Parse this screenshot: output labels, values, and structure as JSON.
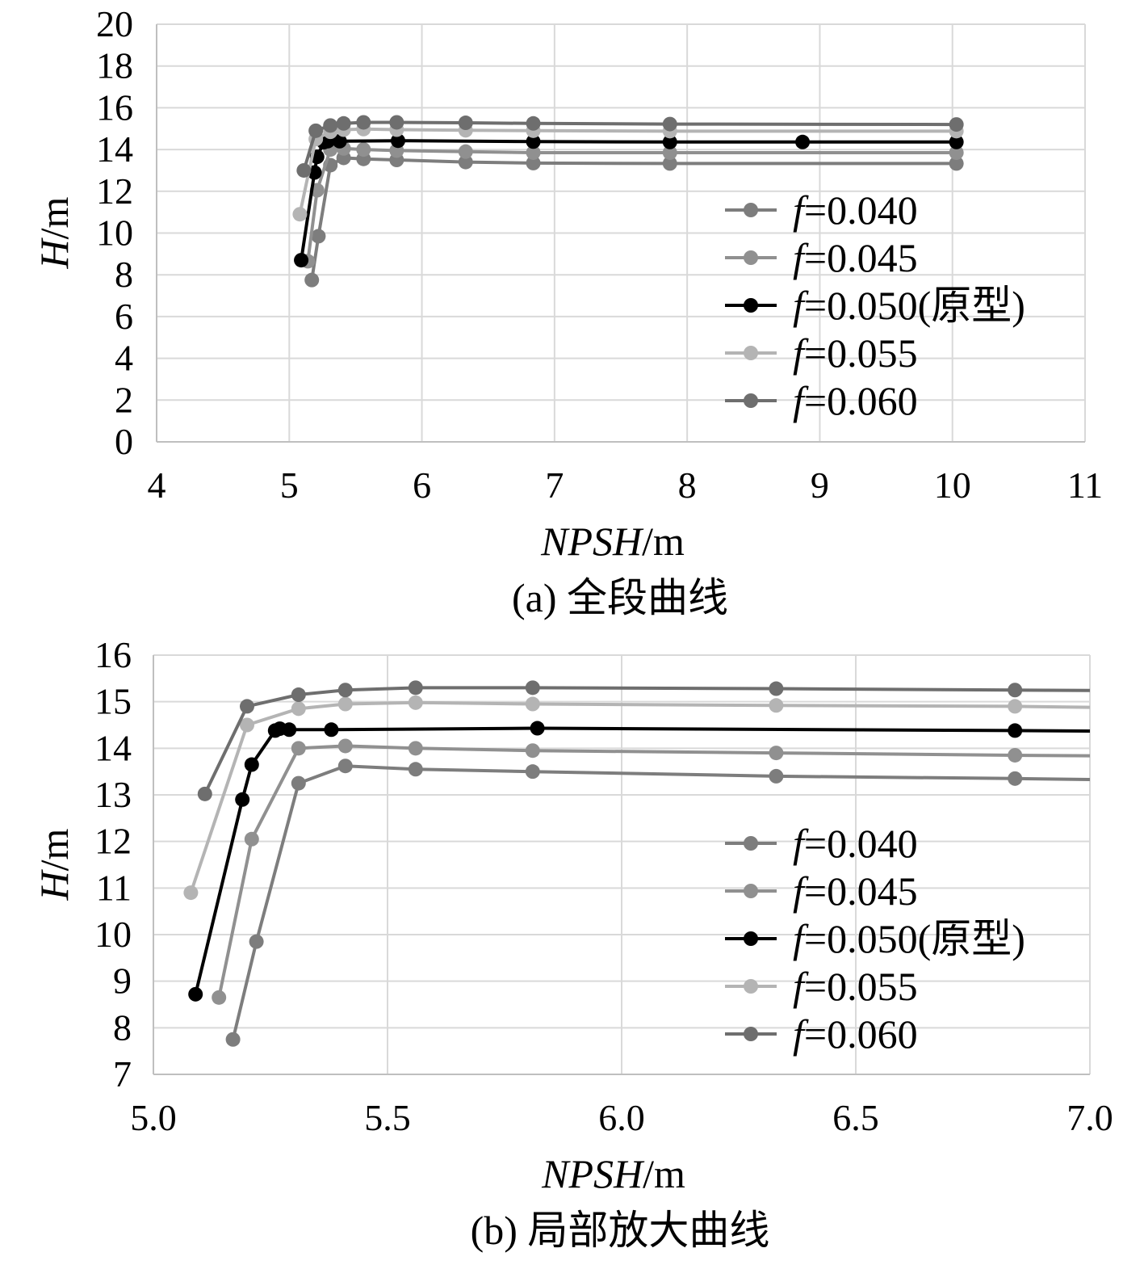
{
  "chart_data": [
    {
      "type": "line",
      "caption": "(a) 全段曲线",
      "xlabel_italic": "NPSH",
      "xlabel_unit": "/m",
      "ylabel_italic": "H",
      "ylabel_unit": "/m",
      "xlim": [
        4,
        11
      ],
      "ylim": [
        0,
        20
      ],
      "x_ticks": [
        "4",
        "5",
        "6",
        "7",
        "8",
        "9",
        "10",
        "11"
      ],
      "y_ticks": [
        "0",
        "2",
        "4",
        "6",
        "8",
        "10",
        "12",
        "14",
        "16",
        "18",
        "20"
      ],
      "grid": true,
      "legend_position": "right",
      "series": [
        {
          "name": "=0.040",
          "name_prefix": "f",
          "color": "#7d7d7d",
          "x": [
            5.17,
            5.22,
            5.31,
            5.41,
            5.56,
            5.81,
            6.33,
            6.84,
            7.87,
            10.03
          ],
          "y": [
            7.75,
            9.85,
            13.25,
            13.6,
            13.55,
            13.5,
            13.4,
            13.35,
            13.33,
            13.33
          ]
        },
        {
          "name": "=0.045",
          "name_prefix": "f",
          "color": "#909090",
          "x": [
            5.14,
            5.21,
            5.31,
            5.41,
            5.56,
            5.81,
            6.33,
            6.84,
            7.87,
            10.03
          ],
          "y": [
            8.65,
            12.05,
            14.0,
            14.05,
            14.0,
            13.95,
            13.9,
            13.85,
            13.85,
            13.85
          ]
        },
        {
          "name": "=0.050(原型)",
          "name_prefix": "f",
          "color": "#000000",
          "x": [
            5.09,
            5.19,
            5.21,
            5.26,
            5.27,
            5.29,
            5.38,
            5.82,
            6.84,
            7.87,
            8.87,
            10.03
          ],
          "y": [
            8.7,
            12.9,
            13.65,
            14.35,
            14.4,
            14.4,
            14.4,
            14.42,
            14.38,
            14.36,
            14.36,
            14.36
          ]
        },
        {
          "name": "=0.055",
          "name_prefix": "f",
          "color": "#b4b4b4",
          "x": [
            5.08,
            5.2,
            5.31,
            5.41,
            5.56,
            5.81,
            6.33,
            6.84,
            7.87,
            10.03
          ],
          "y": [
            10.9,
            14.5,
            14.85,
            14.95,
            14.98,
            14.95,
            14.92,
            14.9,
            14.88,
            14.88
          ]
        },
        {
          "name": "=0.060",
          "name_prefix": "f",
          "color": "#6e6e6e",
          "x": [
            5.11,
            5.2,
            5.31,
            5.41,
            5.56,
            5.81,
            6.33,
            6.84,
            7.87,
            10.03
          ],
          "y": [
            13.0,
            14.9,
            15.15,
            15.25,
            15.3,
            15.3,
            15.28,
            15.25,
            15.22,
            15.2
          ]
        }
      ]
    },
    {
      "type": "line",
      "caption": "(b) 局部放大曲线",
      "xlabel_italic": "NPSH",
      "xlabel_unit": "/m",
      "ylabel_italic": "H",
      "ylabel_unit": "/m",
      "xlim": [
        5.0,
        7.0
      ],
      "ylim": [
        7,
        16
      ],
      "x_ticks": [
        "5.0",
        "5.5",
        "6.0",
        "6.5",
        "7.0"
      ],
      "y_ticks": [
        "7",
        "8",
        "9",
        "10",
        "11",
        "12",
        "13",
        "14",
        "15",
        "16"
      ],
      "grid": true,
      "legend_position": "right",
      "series": [
        {
          "name": "=0.040",
          "name_prefix": "f",
          "color": "#7d7d7d",
          "x": [
            5.17,
            5.22,
            5.31,
            5.41,
            5.56,
            5.81,
            6.33,
            6.84,
            7.0
          ],
          "y": [
            7.75,
            9.85,
            13.25,
            13.62,
            13.55,
            13.5,
            13.4,
            13.35,
            13.33
          ]
        },
        {
          "name": "=0.045",
          "name_prefix": "f",
          "color": "#909090",
          "x": [
            5.14,
            5.21,
            5.31,
            5.41,
            5.56,
            5.81,
            6.33,
            6.84,
            7.0
          ],
          "y": [
            8.65,
            12.05,
            14.0,
            14.05,
            14.0,
            13.95,
            13.9,
            13.85,
            13.84
          ]
        },
        {
          "name": "=0.050(原型)",
          "name_prefix": "f",
          "color": "#000000",
          "x": [
            5.09,
            5.19,
            5.21,
            5.26,
            5.27,
            5.29,
            5.38,
            5.82,
            6.84,
            7.0
          ],
          "y": [
            8.72,
            12.9,
            13.65,
            14.38,
            14.42,
            14.4,
            14.4,
            14.43,
            14.38,
            14.37
          ]
        },
        {
          "name": "=0.055",
          "name_prefix": "f",
          "color": "#b4b4b4",
          "x": [
            5.08,
            5.2,
            5.31,
            5.41,
            5.56,
            5.81,
            6.33,
            6.84,
            7.0
          ],
          "y": [
            10.9,
            14.5,
            14.85,
            14.95,
            14.98,
            14.95,
            14.92,
            14.9,
            14.88
          ]
        },
        {
          "name": "=0.060",
          "name_prefix": "f",
          "color": "#6e6e6e",
          "x": [
            5.11,
            5.2,
            5.31,
            5.41,
            5.56,
            5.81,
            6.33,
            6.84,
            7.0
          ],
          "y": [
            13.02,
            14.9,
            15.15,
            15.25,
            15.3,
            15.3,
            15.28,
            15.25,
            15.24
          ]
        }
      ]
    }
  ]
}
